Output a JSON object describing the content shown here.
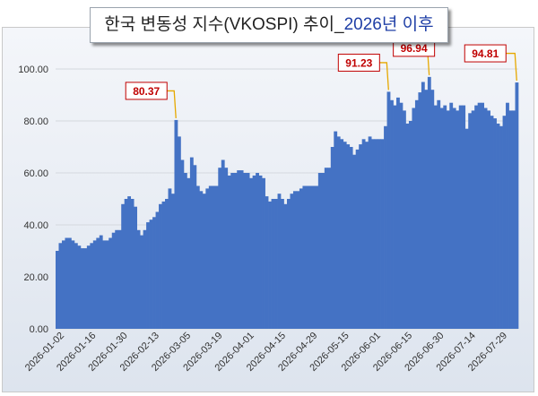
{
  "title": {
    "main": "한국 변동성 지수(VKOSPI) 추이_",
    "accent": "2026년 이후"
  },
  "colors": {
    "bar": "#4472c4",
    "callout_border": "#c00000",
    "callout_text": "#c00000",
    "leader": "#e6a800",
    "title_accent": "#1f3fa6"
  },
  "chart_data": {
    "type": "bar",
    "title": "한국 변동성 지수(VKOSPI) 추이_2026년 이후",
    "xlabel": "",
    "ylabel": "",
    "ylim": [
      0,
      110
    ],
    "yticks": [
      0,
      20,
      40,
      60,
      80,
      100
    ],
    "ytick_labels": [
      "0.00",
      "20.00",
      "40.00",
      "60.00",
      "80.00",
      "100.00"
    ],
    "grid": true,
    "x_tick_labels": [
      "2026-01-02",
      "2026-01-16",
      "2026-01-30",
      "2026-02-13",
      "2026-03-05",
      "2026-03-19",
      "2026-04-01",
      "2026-04-15",
      "2026-04-29",
      "2026-05-15",
      "2026-06-01",
      "2026-06-15",
      "2026-06-30",
      "2026-07-14",
      "2026-07-29"
    ],
    "values": [
      30,
      33,
      34,
      35,
      35,
      34,
      33,
      32,
      31,
      31,
      32,
      33,
      34,
      35,
      36,
      34,
      34,
      35,
      37,
      38,
      38,
      48,
      50,
      51,
      50,
      47,
      38,
      36,
      38,
      41,
      42,
      43,
      45,
      48,
      49,
      50,
      54,
      52,
      80.37,
      74,
      65,
      60,
      58,
      66,
      63,
      55,
      53,
      52,
      54,
      55,
      55,
      55,
      62,
      65,
      62,
      59,
      60,
      60,
      61,
      61,
      60,
      60,
      58,
      59,
      60,
      59,
      58,
      51,
      49,
      50,
      50,
      52,
      50,
      48,
      50,
      52,
      53,
      53,
      54,
      55,
      55,
      55,
      55,
      55,
      60,
      60,
      62,
      62,
      70,
      76,
      74,
      73,
      72,
      71,
      70,
      67,
      69,
      71,
      73,
      72,
      74,
      73,
      73,
      73,
      73,
      78,
      91.23,
      88,
      86,
      89,
      87,
      84,
      79,
      80,
      85,
      88,
      91,
      95,
      92,
      96.94,
      92,
      86,
      88,
      85,
      86,
      84,
      87,
      85,
      84,
      86,
      86,
      77,
      83,
      84,
      86,
      87,
      87,
      85,
      84,
      82,
      81,
      79,
      78,
      82,
      87,
      84,
      84,
      94.81
    ],
    "annotations": [
      {
        "label": "80.37",
        "index": 38
      },
      {
        "label": "91.23",
        "index": 106
      },
      {
        "label": "96.94",
        "index": 119
      },
      {
        "label": "94.81",
        "index": 147
      }
    ]
  }
}
